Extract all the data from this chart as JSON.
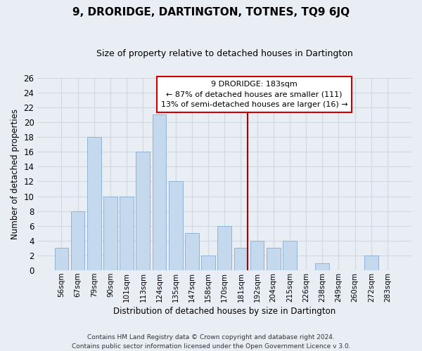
{
  "title": "9, DRORIDGE, DARTINGTON, TOTNES, TQ9 6JQ",
  "subtitle": "Size of property relative to detached houses in Dartington",
  "xlabel": "Distribution of detached houses by size in Dartington",
  "ylabel": "Number of detached properties",
  "footnote1": "Contains HM Land Registry data © Crown copyright and database right 2024.",
  "footnote2": "Contains public sector information licensed under the Open Government Licence v 3.0.",
  "bar_labels": [
    "56sqm",
    "67sqm",
    "79sqm",
    "90sqm",
    "101sqm",
    "113sqm",
    "124sqm",
    "135sqm",
    "147sqm",
    "158sqm",
    "170sqm",
    "181sqm",
    "192sqm",
    "204sqm",
    "215sqm",
    "226sqm",
    "238sqm",
    "249sqm",
    "260sqm",
    "272sqm",
    "283sqm"
  ],
  "bar_values": [
    3,
    8,
    18,
    10,
    10,
    16,
    21,
    12,
    5,
    2,
    6,
    3,
    4,
    3,
    4,
    0,
    1,
    0,
    0,
    2,
    0
  ],
  "bar_color": "#c5d9ee",
  "bar_edge_color": "#91b4d5",
  "highlight_line_idx": 11,
  "highlight_line_color": "#aa0000",
  "ylim": [
    0,
    26
  ],
  "yticks": [
    0,
    2,
    4,
    6,
    8,
    10,
    12,
    14,
    16,
    18,
    20,
    22,
    24,
    26
  ],
  "annotation_title": "9 DRORIDGE: 183sqm",
  "annotation_line1": "← 87% of detached houses are smaller (111)",
  "annotation_line2": "13% of semi-detached houses are larger (16) →",
  "annotation_box_color": "#ffffff",
  "annotation_box_edge": "#cc0000",
  "grid_color": "#d0d8e0",
  "background_color": "#e8eef4"
}
